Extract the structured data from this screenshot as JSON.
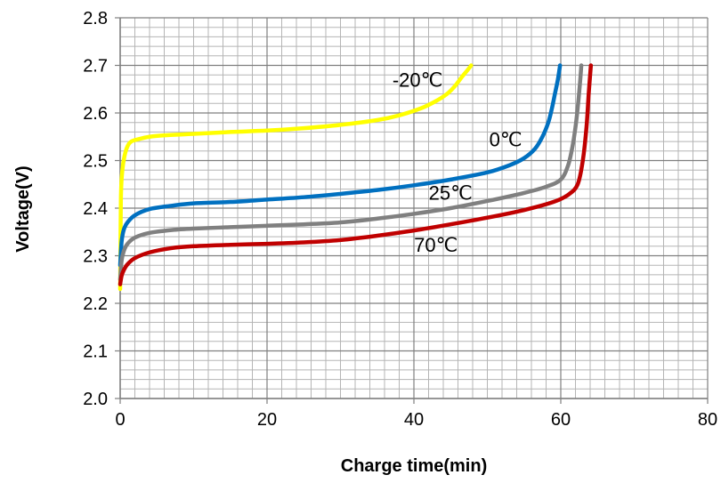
{
  "chart_data": {
    "type": "line",
    "title": "",
    "xlabel": "Charge time(min)",
    "ylabel": "Voltage(V)",
    "xlim": [
      0,
      80
    ],
    "ylim": [
      2.0,
      2.8
    ],
    "x_ticks": [
      "0",
      "20",
      "40",
      "60",
      "80"
    ],
    "y_ticks": [
      "2.0",
      "2.1",
      "2.2",
      "2.3",
      "2.4",
      "2.5",
      "2.6",
      "2.7",
      "2.8"
    ],
    "grid": {
      "major": true,
      "minor": true
    },
    "legend": "none",
    "series": [
      {
        "name": "-20℃",
        "color": "#ffff00",
        "x": [
          0,
          0.1,
          0.3,
          0.6,
          1.0,
          1.5,
          2.5,
          4,
          6,
          10,
          15,
          20,
          25,
          30,
          35,
          38,
          41,
          43,
          44.5,
          45.5,
          46.5,
          47.3,
          47.8
        ],
        "y": [
          2.23,
          2.42,
          2.48,
          2.51,
          2.53,
          2.54,
          2.545,
          2.55,
          2.553,
          2.556,
          2.56,
          2.563,
          2.568,
          2.575,
          2.585,
          2.595,
          2.61,
          2.625,
          2.64,
          2.655,
          2.675,
          2.69,
          2.7
        ]
      },
      {
        "name": "0℃",
        "color": "#0070c0",
        "x": [
          0,
          0.2,
          0.5,
          1,
          2,
          4,
          7,
          10,
          15,
          20,
          25,
          30,
          35,
          40,
          45,
          50,
          53,
          55,
          56.5,
          57.5,
          58.3,
          58.8,
          59.2,
          59.6,
          59.9
        ],
        "y": [
          2.28,
          2.33,
          2.355,
          2.37,
          2.385,
          2.398,
          2.405,
          2.41,
          2.413,
          2.418,
          2.423,
          2.43,
          2.438,
          2.448,
          2.46,
          2.475,
          2.49,
          2.505,
          2.525,
          2.55,
          2.58,
          2.61,
          2.64,
          2.67,
          2.7
        ]
      },
      {
        "name": "25℃",
        "color": "#808080",
        "x": [
          0,
          0.2,
          0.5,
          1,
          2,
          4,
          7,
          10,
          15,
          20,
          25,
          30,
          35,
          40,
          45,
          50,
          55,
          58,
          60,
          61,
          61.6,
          62,
          62.3,
          62.6,
          62.8
        ],
        "y": [
          2.25,
          2.29,
          2.31,
          2.325,
          2.338,
          2.348,
          2.354,
          2.357,
          2.36,
          2.363,
          2.366,
          2.37,
          2.378,
          2.388,
          2.4,
          2.415,
          2.432,
          2.445,
          2.46,
          2.49,
          2.53,
          2.57,
          2.61,
          2.66,
          2.7
        ]
      },
      {
        "name": "70℃",
        "color": "#c00000",
        "x": [
          0,
          0.2,
          0.5,
          1,
          2,
          4,
          7,
          10,
          15,
          20,
          25,
          30,
          35,
          40,
          45,
          50,
          55,
          59,
          61,
          62.3,
          63,
          63.5,
          63.8,
          64.1
        ],
        "y": [
          2.24,
          2.258,
          2.27,
          2.282,
          2.295,
          2.307,
          2.316,
          2.32,
          2.323,
          2.325,
          2.328,
          2.333,
          2.342,
          2.353,
          2.366,
          2.38,
          2.396,
          2.413,
          2.428,
          2.45,
          2.5,
          2.57,
          2.64,
          2.7
        ]
      }
    ],
    "annotations": [
      {
        "text": "-20℃",
        "x": 40.5,
        "y": 2.655
      },
      {
        "text": "0℃",
        "x": 52.5,
        "y": 2.53
      },
      {
        "text": "25℃",
        "x": 45,
        "y": 2.418
      },
      {
        "text": "70℃",
        "x": 43,
        "y": 2.308
      }
    ]
  }
}
